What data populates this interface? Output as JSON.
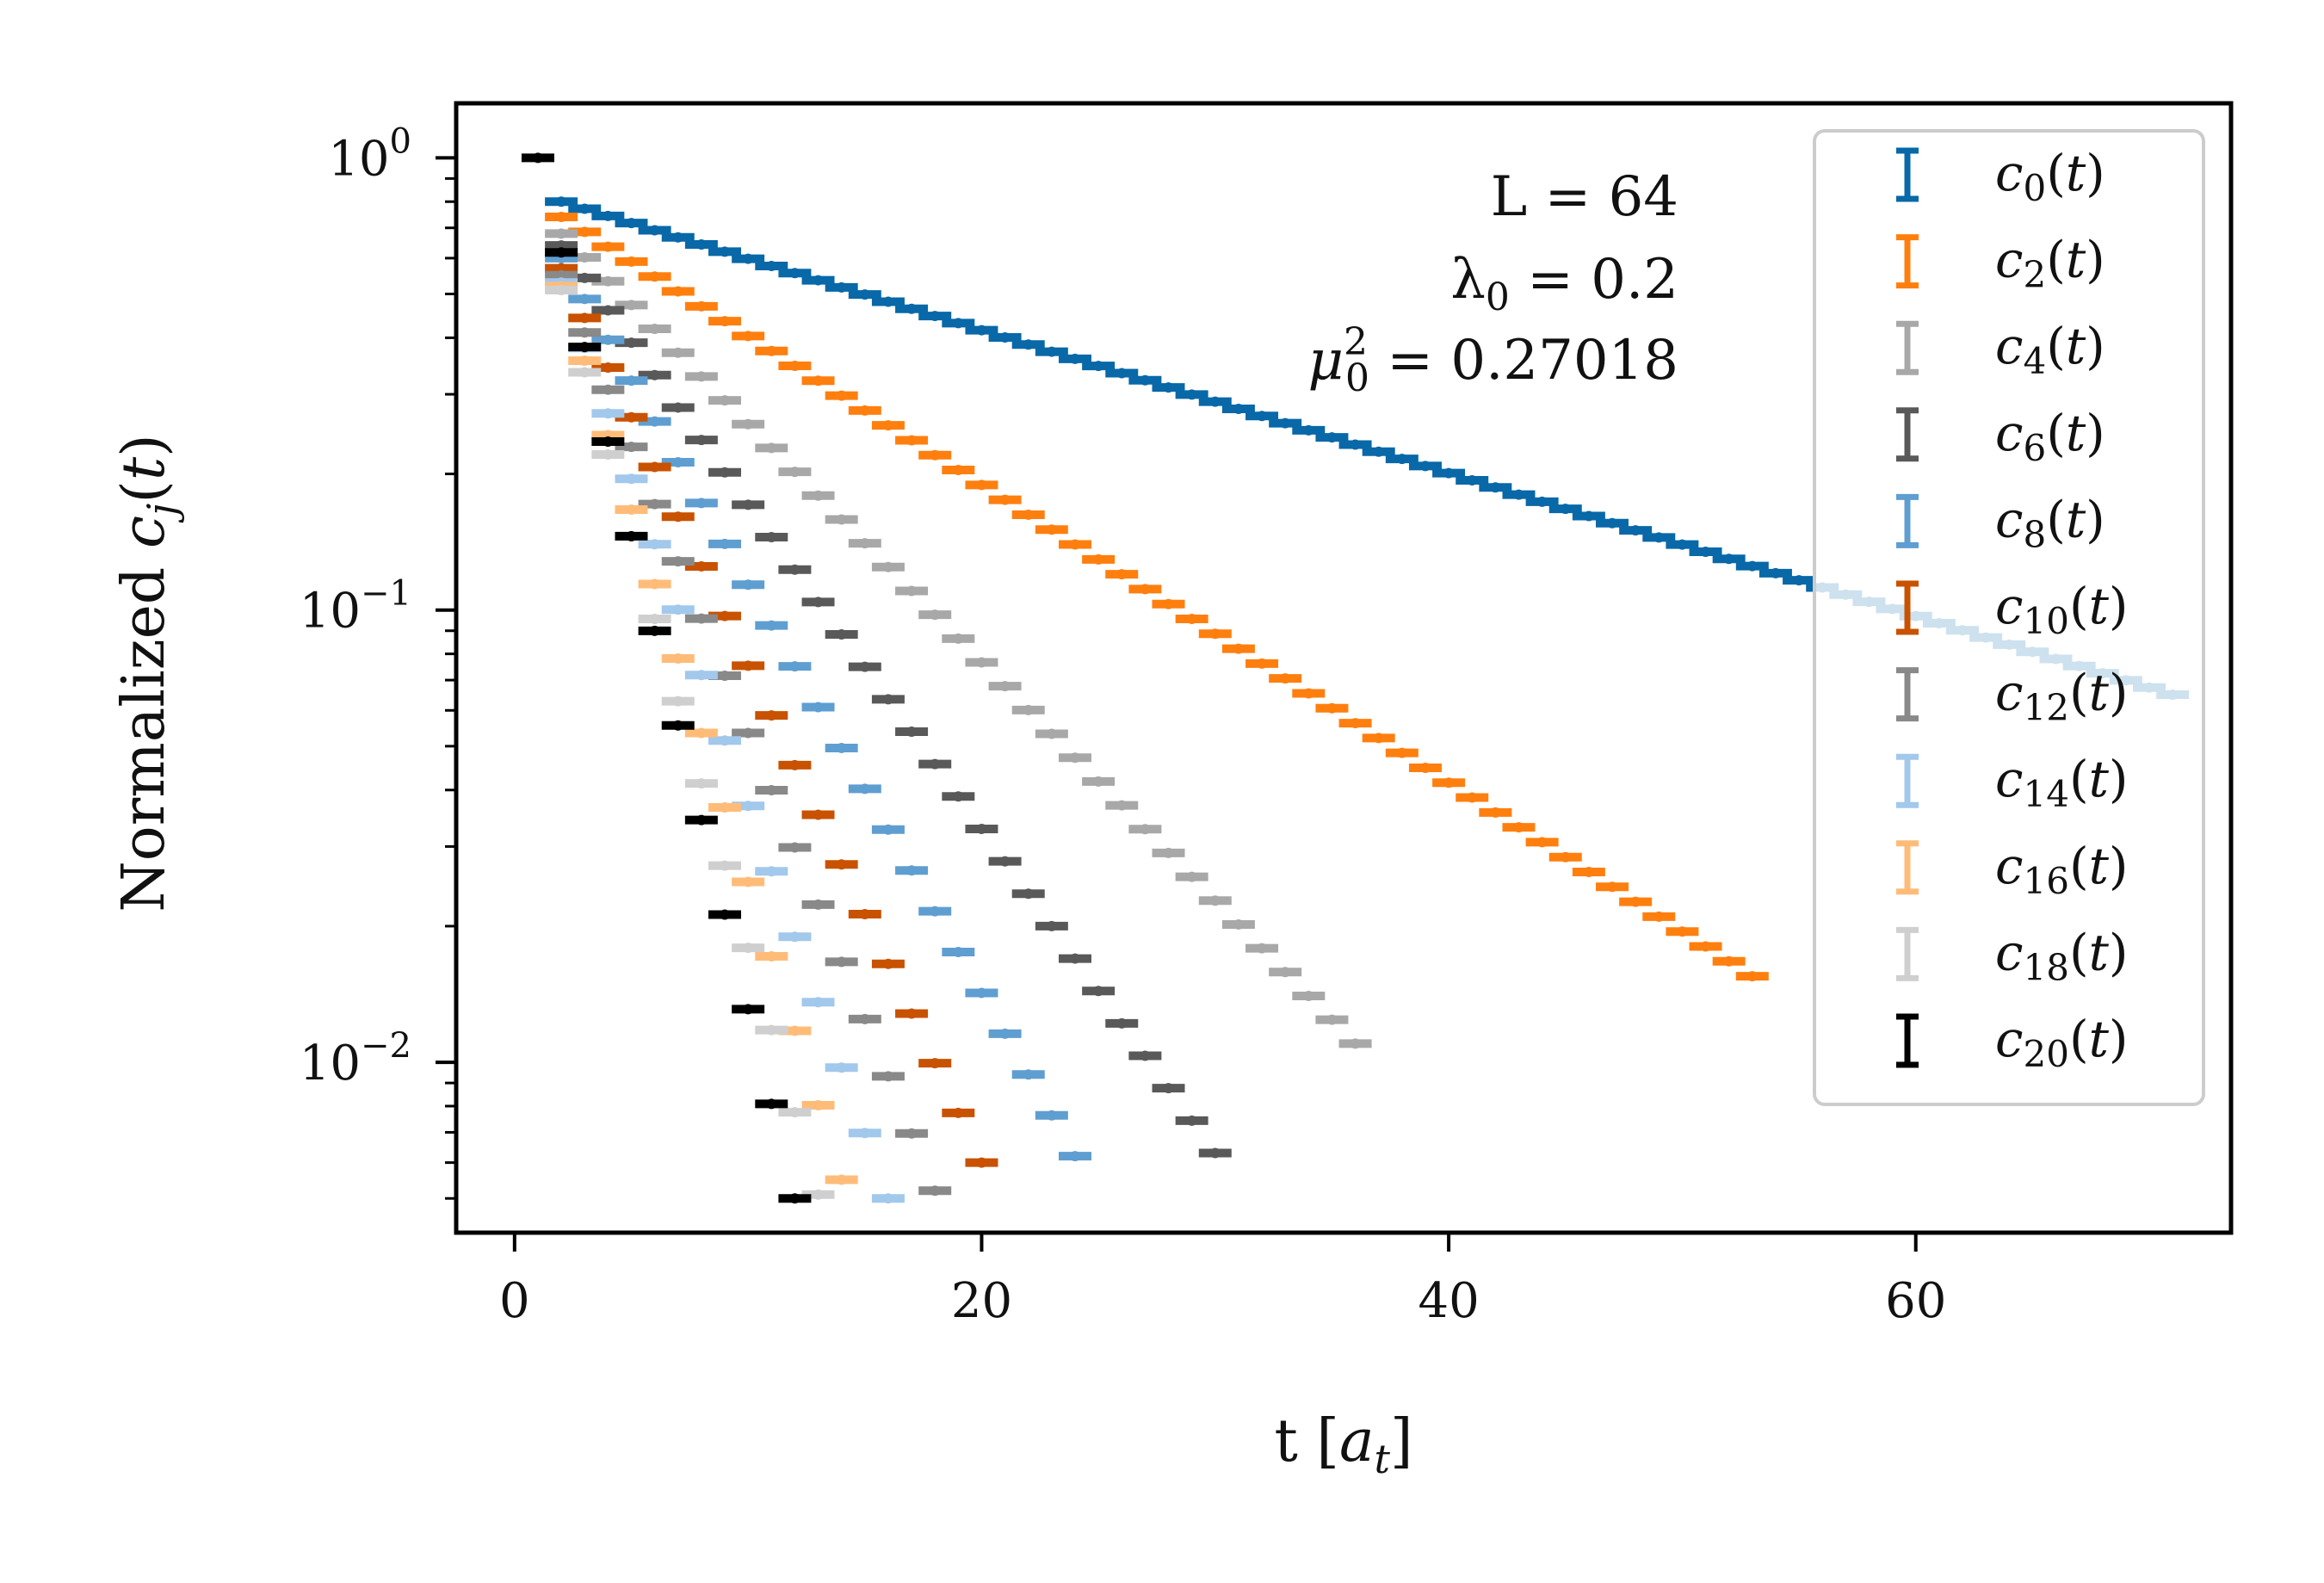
{
  "chart_data": {
    "type": "scatter",
    "xlabel": "t [a_t]",
    "ylabel": "Normalized c_j(t)",
    "yscale": "log",
    "xlim": [
      -2.5,
      73.5
    ],
    "ylim": [
      0.0042,
      1.32
    ],
    "x_ticks": [
      0,
      20,
      40,
      60
    ],
    "x_tick_labels": [
      "0",
      "20",
      "40",
      "60"
    ],
    "y_ticks": [
      1,
      0.1,
      0.01
    ],
    "y_tick_labels": [
      {
        "base": "10",
        "exp": "0"
      },
      {
        "base": "10",
        "exp": "−1"
      },
      {
        "base": "10",
        "exp": "−2"
      }
    ],
    "annotations": [
      "L = 64",
      "λ0 = 0.2",
      "μ0^2 = 0.27018"
    ],
    "legend_position": "top-right",
    "grid": false,
    "series_colors": [
      "#0868a8",
      "#ff7f0e",
      "#a8a8a8",
      "#595959",
      "#5f9ed1",
      "#c85200",
      "#898989",
      "#a2c8ec",
      "#ffbc79",
      "#cfcfcf",
      "#000000"
    ],
    "series": [
      {
        "name": "c0(t)",
        "t_start": 2,
        "t_end": 71,
        "y_start": 0.8,
        "y_end": 0.065
      },
      {
        "name": "c2(t)",
        "t_start": 2,
        "t_end": 53,
        "y_start": 0.74,
        "y_end": 0.0155
      },
      {
        "name": "c4(t)",
        "t_start": 2,
        "t_end": 36,
        "y_start": 0.68,
        "y_end": 0.011
      },
      {
        "name": "c6(t)",
        "t_start": 2,
        "t_end": 30,
        "y_start": 0.64,
        "y_end": 0.0063
      },
      {
        "name": "c8(t)",
        "t_start": 2,
        "t_end": 24,
        "y_start": 0.6,
        "y_end": 0.0062
      },
      {
        "name": "c10(t)",
        "t_start": 2,
        "t_end": 20,
        "y_start": 0.57,
        "y_end": 0.006
      },
      {
        "name": "c12(t)",
        "t_start": 2,
        "t_end": 18,
        "y_start": 0.55,
        "y_end": 0.0052
      },
      {
        "name": "c14(t)",
        "t_start": 2,
        "t_end": 16,
        "y_start": 0.53,
        "y_end": 0.005
      },
      {
        "name": "c16(t)",
        "t_start": 2,
        "t_end": 14,
        "y_start": 0.52,
        "y_end": 0.0055
      },
      {
        "name": "c18(t)",
        "t_start": 2,
        "t_end": 13,
        "y_start": 0.51,
        "y_end": 0.0051
      },
      {
        "name": "c20(t)",
        "t_start": 1,
        "t_end": 12,
        "y_start": 1.0,
        "y_end": 0.005
      }
    ]
  }
}
